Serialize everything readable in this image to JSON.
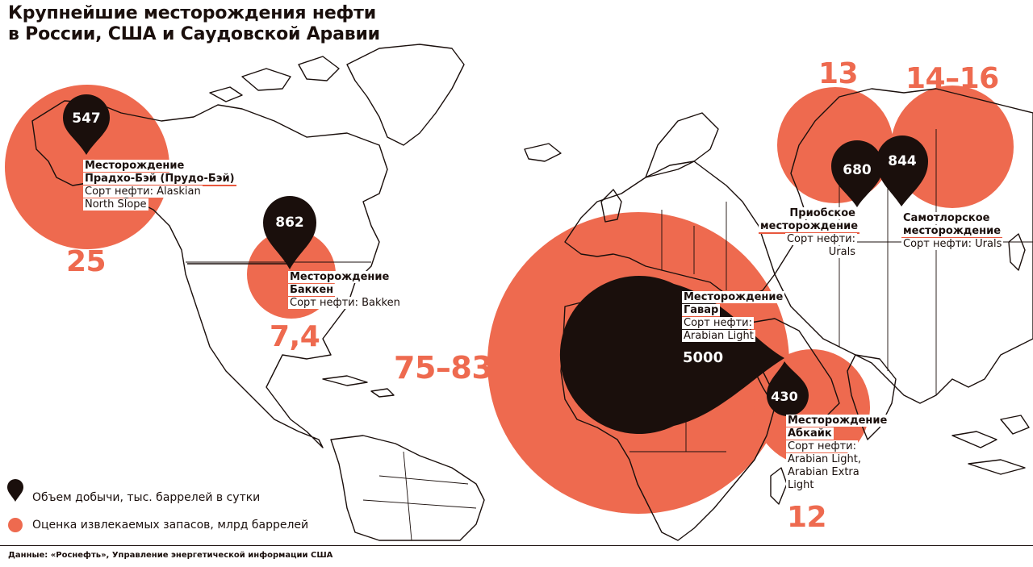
{
  "title": {
    "line1": "Крупнейшие месторождения нефти",
    "line2": "в России, США и Саудовской Аравии"
  },
  "legend": {
    "production": "Объем добычи, тыс. баррелей в сутки",
    "reserves": "Оценка извлекаемых запасов, млрд баррелей"
  },
  "source": "Данные: «Роснефть», Управление энергетической информации США",
  "colors": {
    "reserves": "#ee6a4f",
    "production": "#1a0f0c",
    "land_outline": "#1a0f0c"
  },
  "fields": [
    {
      "id": "prudhoe",
      "production": 547,
      "reserves": "25",
      "lines": [
        "Месторождение",
        "Прадхо-Бэй (Прудо-Бэй)",
        "Сорт нефти: Alaskian",
        "North Slope"
      ]
    },
    {
      "id": "bakken",
      "production": 862,
      "reserves": "7,4",
      "lines": [
        "Месторождение",
        "Баккен",
        "Сорт нефти: Bakken"
      ]
    },
    {
      "id": "ghawar",
      "production": 5000,
      "reserves": "75–83",
      "lines": [
        "Месторождение",
        "Гавар",
        "Сорт нефти:",
        "Arabian Light"
      ],
      "value_text": "5000"
    },
    {
      "id": "abqaiq",
      "production": 430,
      "reserves": "12",
      "lines": [
        "Месторождение",
        "Абкайк",
        "Сорт нефти:",
        "Arabian Light,",
        "Arabian Extra",
        "Light"
      ]
    },
    {
      "id": "priobskoye",
      "production": 680,
      "reserves": "13",
      "lines": [
        "Приобское",
        "месторождение",
        "Сорт нефти:",
        "Urals"
      ]
    },
    {
      "id": "samotlor",
      "production": 844,
      "reserves": "14–16",
      "lines": [
        "Самотлорское",
        "месторождение",
        "Сорт нефти: Urals"
      ]
    }
  ]
}
